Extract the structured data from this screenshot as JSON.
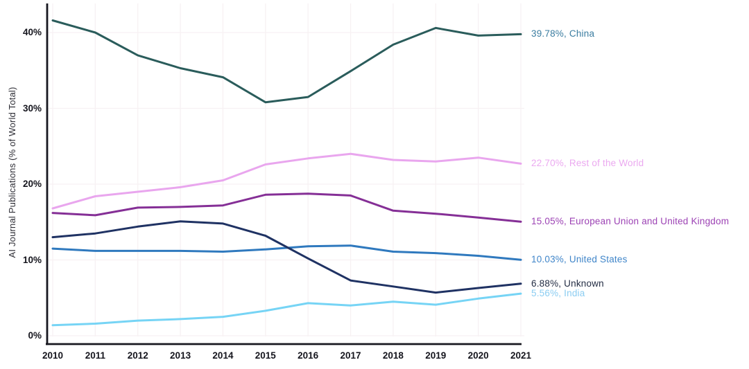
{
  "chart_data": {
    "type": "line",
    "title": "",
    "ylabel": "AI Journal Publications (% of World Total)",
    "x": [
      2010,
      2011,
      2012,
      2013,
      2014,
      2015,
      2016,
      2017,
      2018,
      2019,
      2020,
      2021
    ],
    "x_tick_labels": [
      "2010",
      "2011",
      "2012",
      "2013",
      "2014",
      "2015",
      "2016",
      "2017",
      "2018",
      "2019",
      "2020",
      "2021"
    ],
    "y_ticks": [
      0,
      10,
      20,
      30,
      40
    ],
    "y_tick_labels": [
      "0%",
      "10%",
      "20%",
      "30%",
      "40%"
    ],
    "xlim": [
      2010,
      2021
    ],
    "ylim": [
      0,
      43.6
    ],
    "grid": true,
    "legend_position": "right-edge-end-labels",
    "axis_color": "#17171f",
    "grid_color": "#f7f1f3",
    "tick_color": "#15151d",
    "series": [
      {
        "name": "China",
        "slug": "china",
        "line_color": "#2a5c5b",
        "label_color": "#3a7ca0",
        "end_label": "39.78%, China",
        "end_value_text": "39.78%",
        "values": [
          41.6,
          40.0,
          37.0,
          35.3,
          34.1,
          30.8,
          31.5,
          34.9,
          38.4,
          40.6,
          39.6,
          39.78
        ]
      },
      {
        "name": "Rest of the World",
        "slug": "rest-of-the-world",
        "line_color": "#e9a6ee",
        "label_color": "#eba9f0",
        "end_label": "22.70%, Rest of the World",
        "end_value_text": "22.70%",
        "values": [
          16.8,
          18.4,
          19.0,
          19.6,
          20.5,
          22.6,
          23.4,
          24.0,
          23.2,
          23.0,
          23.5,
          22.7
        ]
      },
      {
        "name": "European Union and United Kingdom",
        "slug": "eu-and-uk",
        "line_color": "#852f96",
        "label_color": "#9c42b4",
        "end_label": "15.05%, European Union and United Kingdom",
        "end_value_text": "15.05%",
        "values": [
          16.2,
          15.9,
          16.9,
          17.0,
          17.2,
          18.6,
          18.75,
          18.5,
          16.5,
          16.1,
          15.6,
          15.05
        ]
      },
      {
        "name": "United States",
        "slug": "united-states",
        "line_color": "#2f79be",
        "label_color": "#3f85c9",
        "end_label": "10.03%, United States",
        "end_value_text": "10.03%",
        "values": [
          11.5,
          11.2,
          11.2,
          11.2,
          11.1,
          11.4,
          11.8,
          11.9,
          11.1,
          10.9,
          10.55,
          10.03
        ]
      },
      {
        "name": "Unknown",
        "slug": "unknown",
        "line_color": "#1f3263",
        "label_color": "#1f2940",
        "end_label": "6.88%, Unknown",
        "end_value_text": "6.88%",
        "values": [
          13.0,
          13.5,
          14.4,
          15.1,
          14.8,
          13.2,
          10.2,
          7.3,
          6.5,
          5.7,
          6.3,
          6.88
        ]
      },
      {
        "name": "India",
        "slug": "india",
        "line_color": "#76d4f5",
        "label_color": "#8bcdf2",
        "end_label": "5.56%, India",
        "end_value_text": "5.56%",
        "values": [
          1.4,
          1.6,
          2.0,
          2.2,
          2.5,
          3.3,
          4.3,
          4.0,
          4.5,
          4.1,
          4.9,
          5.56
        ]
      }
    ]
  }
}
